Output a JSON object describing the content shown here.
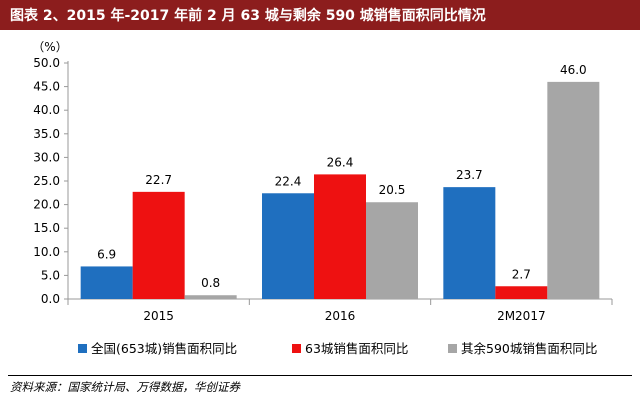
{
  "header": {
    "title": "图表 2、2015 年-2017 年前 2 月 63 城与剩余 590 城销售面积同比情况"
  },
  "source": "资料来源：国家统计局、万得数据，华创证券",
  "chart_data": {
    "type": "bar",
    "title": "图表 2、2015 年-2017 年前 2 月 63 城与剩余 590 城销售面积同比情况",
    "ylabel": "（%）",
    "xlabel": "",
    "ylim": [
      0,
      50
    ],
    "yticks": [
      "0.0",
      "5.0",
      "10.0",
      "15.0",
      "20.0",
      "25.0",
      "30.0",
      "35.0",
      "40.0",
      "45.0",
      "50.0"
    ],
    "categories": [
      "2015",
      "2016",
      "2M2017"
    ],
    "series": [
      {
        "name": "全国(653城)销售面积同比",
        "color": "#1f6fbf",
        "values": [
          6.9,
          22.4,
          23.7
        ],
        "labels": [
          "6.9",
          "22.4",
          "23.7"
        ]
      },
      {
        "name": "63城销售面积同比",
        "color": "#ee1111",
        "values": [
          22.7,
          26.4,
          2.7
        ],
        "labels": [
          "22.7",
          "26.4",
          "2.7"
        ]
      },
      {
        "name": "其余590城销售面积同比",
        "color": "#a6a6a6",
        "values": [
          0.8,
          20.5,
          46.0
        ],
        "labels": [
          "0.8",
          "20.5",
          "46.0"
        ]
      }
    ],
    "grid": false,
    "legend": "bottom"
  }
}
